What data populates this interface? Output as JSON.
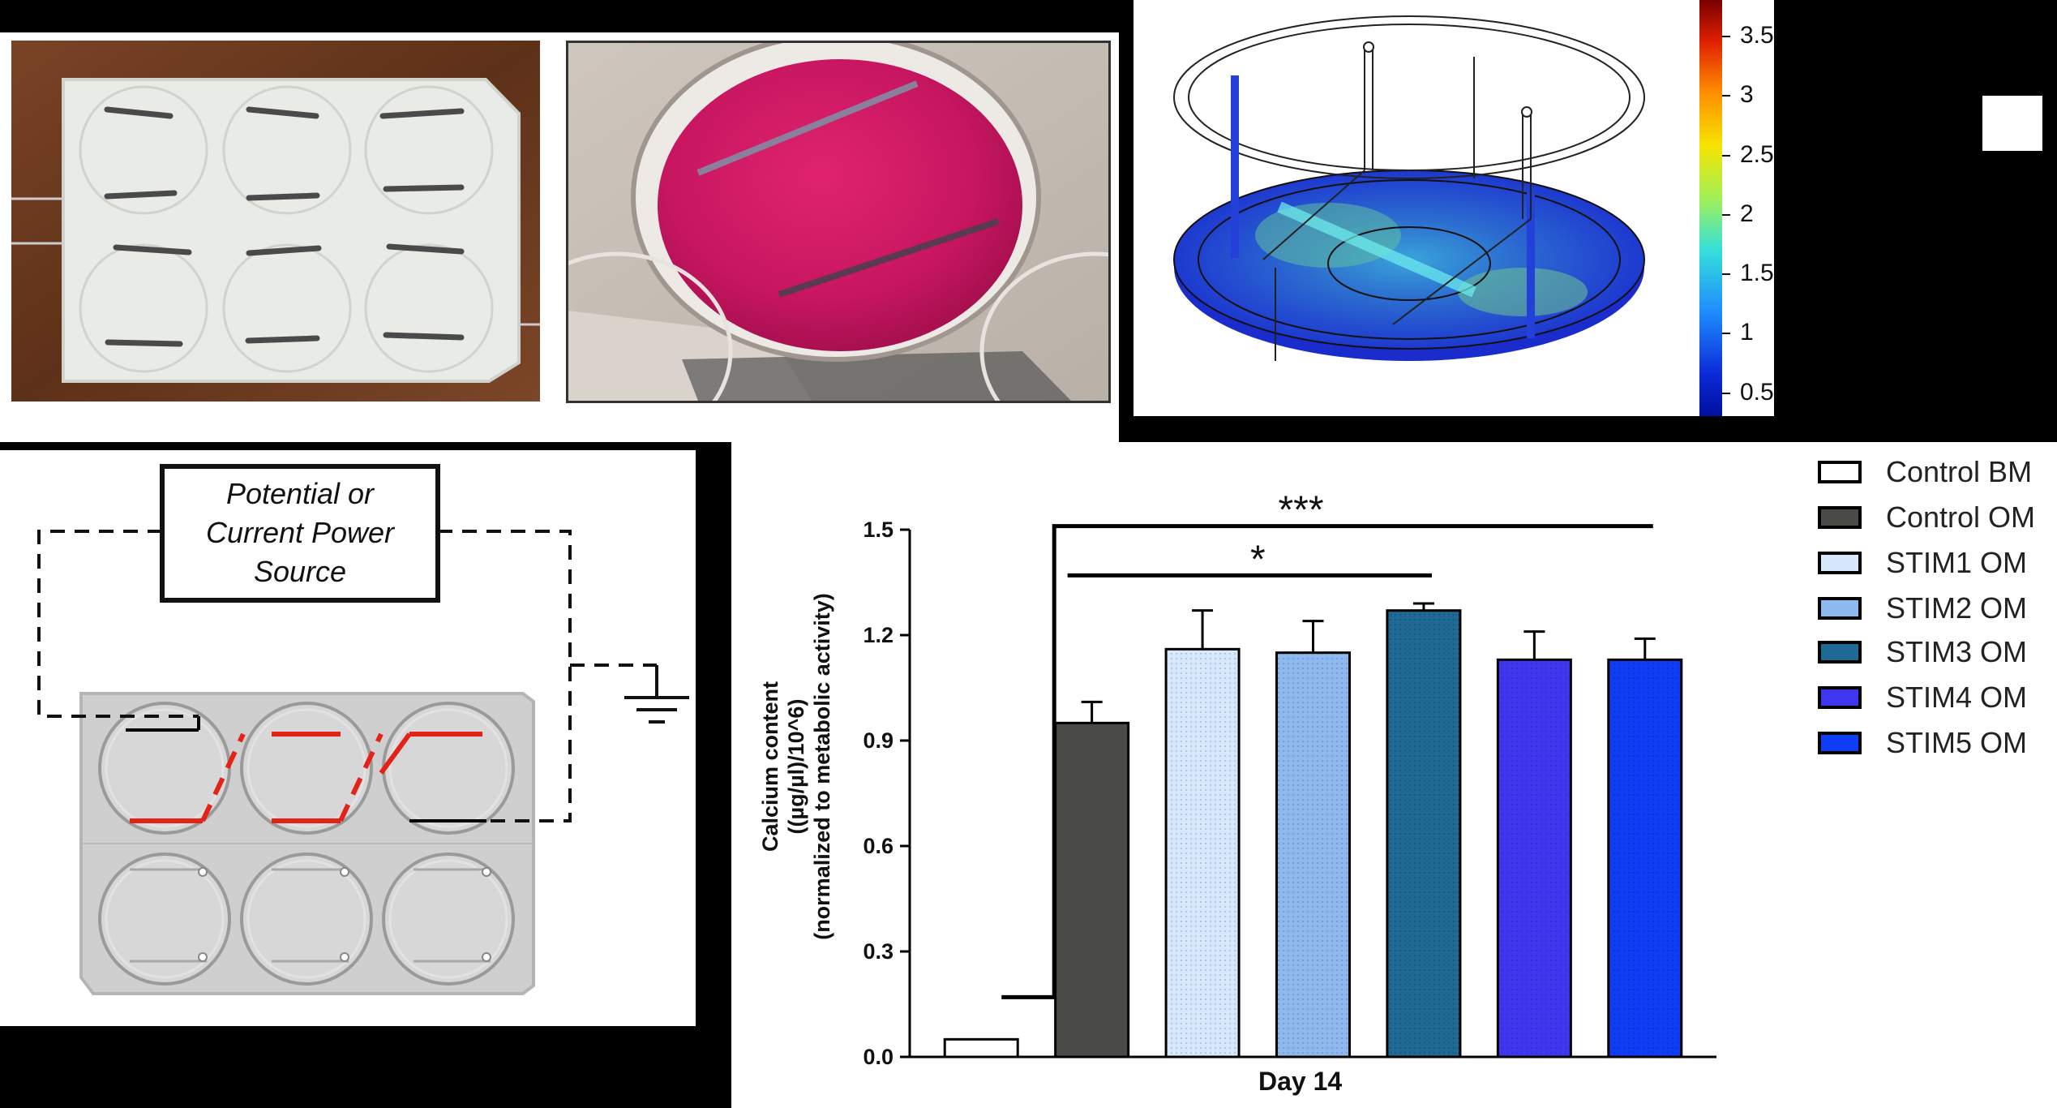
{
  "colorbar": {
    "ticks": [
      "3.5",
      "3",
      "2.5",
      "2",
      "1.5",
      "1",
      "0.5"
    ],
    "tick_values": [
      3.5,
      3,
      2.5,
      2,
      1.5,
      1,
      0.5
    ],
    "max": 3.8,
    "min": 0.3
  },
  "schematic": {
    "power_source_label": "Potential or Current Power Source"
  },
  "colors": {
    "background": "#000000",
    "electrode_red": "#e32218",
    "plate_gray": "#d4d4d4"
  },
  "chart_data": {
    "type": "bar",
    "title": "",
    "xlabel": "Day 14",
    "ylabel_lines": [
      "Calcium content",
      "((µg/µl)/10^6)",
      "(normalized to metabolic activity)"
    ],
    "ylim": [
      0,
      1.5
    ],
    "yticks": [
      "0.0",
      "0.3",
      "0.6",
      "0.9",
      "1.2",
      "1.5"
    ],
    "ytick_values": [
      0,
      0.3,
      0.6,
      0.9,
      1.2,
      1.5
    ],
    "categories": [
      "Control BM",
      "Control OM",
      "STIM1 OM",
      "STIM2 OM",
      "STIM3 OM",
      "STIM4 OM",
      "STIM5 OM"
    ],
    "values": [
      0.05,
      0.95,
      1.16,
      1.15,
      1.27,
      1.13,
      1.13
    ],
    "errors": [
      0.0,
      0.06,
      0.11,
      0.09,
      0.02,
      0.08,
      0.06
    ],
    "colors": [
      "#ffffff",
      "#4a4a47",
      "#d6e8fb",
      "#8db9ee",
      "#1f6a94",
      "#3f37f0",
      "#0f3cf5"
    ],
    "grid": false,
    "legend_position": "top-right",
    "significance": [
      {
        "label": "***",
        "from_category": 1,
        "to_category": 6
      },
      {
        "label": "*",
        "from_category": 1,
        "to_category": 4
      }
    ]
  }
}
